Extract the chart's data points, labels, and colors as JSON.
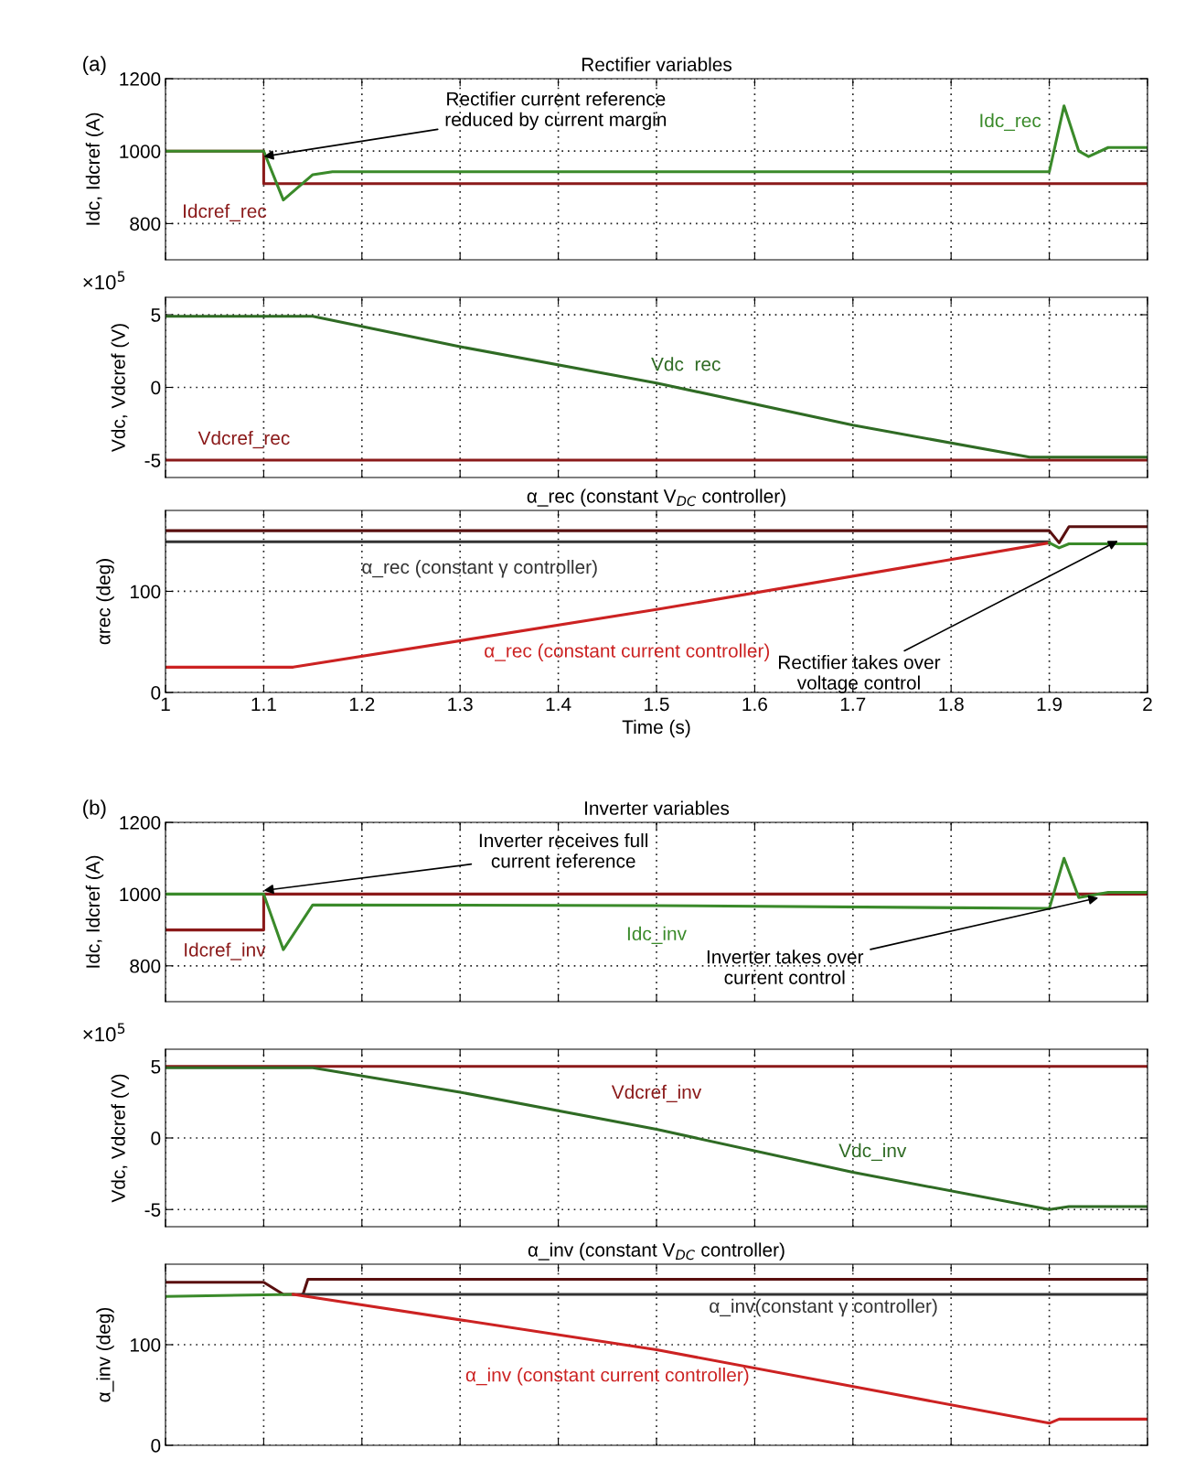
{
  "chart_data": [
    {
      "type": "line",
      "title": "Rectifier variables",
      "ylabel": "Idc, Idcref (A)",
      "xlim": [
        1,
        2
      ],
      "xticks": [
        1,
        1.1,
        1.2,
        1.3,
        1.4,
        1.5,
        1.6,
        1.7,
        1.8,
        1.9,
        2
      ],
      "ylim": [
        700,
        1200
      ],
      "yticks": [
        800,
        1000,
        1200
      ],
      "grid": true,
      "tick_labels": "y",
      "series": [
        {
          "name": "Idcref_rec",
          "color": "#8b1a1a",
          "x": [
            1,
            1.1,
            1.1,
            2
          ],
          "values": [
            1000,
            1000,
            910,
            910
          ]
        },
        {
          "name": "Idc_rec",
          "color": "#3a8a2a",
          "x": [
            1,
            1.1,
            1.12,
            1.15,
            1.17,
            1.9,
            1.915,
            1.93,
            1.94,
            1.96,
            2
          ],
          "values": [
            1000,
            1000,
            865,
            935,
            943,
            943,
            1125,
            1000,
            985,
            1010,
            1010
          ]
        }
      ],
      "annotations": [
        "(a)",
        {
          "text": "Rectifier current reference\nreduced by current margin",
          "x": 1.1,
          "y": 985
        }
      ]
    },
    {
      "type": "line",
      "ylabel": "Vdc, Vdcref (V)",
      "xlim": [
        1,
        2
      ],
      "xticks": [
        1,
        1.1,
        1.2,
        1.3,
        1.4,
        1.5,
        1.6,
        1.7,
        1.8,
        1.9,
        2
      ],
      "ylim": [
        -6.2,
        6.2
      ],
      "yticks": [
        -5,
        0,
        5
      ],
      "grid": true,
      "tick_labels": "y",
      "series": [
        {
          "name": "Vdcref_rec",
          "color": "#8b1a1a",
          "x": [
            1,
            2
          ],
          "values": [
            -5,
            -5
          ]
        },
        {
          "name": "Vdc  rec",
          "color": "#2f6b24",
          "x": [
            1,
            1.15,
            1.3,
            1.5,
            1.7,
            1.88,
            2
          ],
          "values": [
            4.9,
            4.9,
            2.8,
            0.3,
            -2.6,
            -4.8,
            -4.8
          ]
        }
      ],
      "annotations": [
        "×10$^{5}$"
      ]
    },
    {
      "type": "line",
      "title": "α_rec (constant V$_{DC}$ controller)",
      "xlabel": "Time (s)",
      "ylabel": "αrec (deg)",
      "xlim": [
        1,
        2
      ],
      "xticks": [
        1,
        1.1,
        1.2,
        1.3,
        1.4,
        1.5,
        1.6,
        1.7,
        1.8,
        1.9,
        2
      ],
      "ylim": [
        0,
        180
      ],
      "yticks": [
        0,
        100
      ],
      "grid": true,
      "series": [
        {
          "color": "#5a1010",
          "x": [
            1,
            1.9,
            1.91,
            1.92,
            2
          ],
          "values": [
            160,
            160,
            148,
            164,
            164
          ]
        },
        {
          "name": "α_rec (constant γ controller)",
          "color": "#333333",
          "x": [
            1,
            1.9
          ],
          "values": [
            149,
            149
          ]
        },
        {
          "name": "α_rec (constant current controller)",
          "color": "#cc2222",
          "x": [
            1,
            1.13,
            1.5,
            1.9
          ],
          "values": [
            25,
            25,
            82,
            148
          ]
        },
        {
          "color": "#3a8a2a",
          "x": [
            1.9,
            1.91,
            1.92,
            2
          ],
          "values": [
            148,
            143,
            147,
            147
          ]
        }
      ],
      "annotations": [
        {
          "text": "Rectifier takes over\nvoltage control",
          "x": 1.97,
          "y": 150
        }
      ]
    },
    {
      "type": "line",
      "title": "Inverter variables",
      "ylabel": "Idc, Idcref (A)",
      "xlim": [
        1,
        2
      ],
      "xticks": [
        1,
        1.1,
        1.2,
        1.3,
        1.4,
        1.5,
        1.6,
        1.7,
        1.8,
        1.9,
        2
      ],
      "ylim": [
        700,
        1200
      ],
      "yticks": [
        800,
        1000,
        1200
      ],
      "grid": true,
      "tick_labels": "y",
      "series": [
        {
          "name": "Idcref_inv",
          "color": "#8b1a1a",
          "x": [
            1,
            1.1,
            1.1,
            2
          ],
          "values": [
            900,
            900,
            1000,
            1000
          ]
        },
        {
          "name": "Idc_inv",
          "color": "#3a8a2a",
          "x": [
            1,
            1.1,
            1.12,
            1.15,
            1.5,
            1.9,
            1.915,
            1.93,
            1.96,
            2
          ],
          "values": [
            1000,
            1000,
            845,
            970,
            968,
            960,
            1100,
            990,
            1005,
            1005
          ]
        }
      ],
      "annotations": [
        "(b)",
        {
          "text": "Inverter receives full\ncurrent reference",
          "x": 1.1,
          "y": 1010
        },
        {
          "text": "Inverter takes over\ncurrent control",
          "x": 1.95,
          "y": 990
        }
      ]
    },
    {
      "type": "line",
      "ylabel": "Vdc, Vdcref (V)",
      "xlim": [
        1,
        2
      ],
      "xticks": [
        1,
        1.1,
        1.2,
        1.3,
        1.4,
        1.5,
        1.6,
        1.7,
        1.8,
        1.9,
        2
      ],
      "ylim": [
        -6.2,
        6.2
      ],
      "yticks": [
        -5,
        0,
        5
      ],
      "grid": true,
      "tick_labels": "y",
      "series": [
        {
          "name": "Vdcref_inv",
          "color": "#8b1a1a",
          "x": [
            1,
            2
          ],
          "values": [
            5,
            5
          ]
        },
        {
          "name": "Vdc_inv",
          "color": "#2f6b24",
          "x": [
            1,
            1.15,
            1.3,
            1.5,
            1.7,
            1.9,
            1.92,
            2
          ],
          "values": [
            4.9,
            4.9,
            3.2,
            0.6,
            -2.4,
            -5,
            -4.8,
            -4.8
          ]
        }
      ],
      "annotations": [
        "×10$^{5}$"
      ]
    },
    {
      "type": "line",
      "title": "α_inv (constant V$_{DC}$ controller)",
      "ylabel": "α_inv (deg)",
      "xlim": [
        1,
        2
      ],
      "xticks": [
        1,
        1.1,
        1.2,
        1.3,
        1.4,
        1.5,
        1.6,
        1.7,
        1.8,
        1.9,
        2
      ],
      "ylim": [
        0,
        180
      ],
      "yticks": [
        0,
        100
      ],
      "grid": true,
      "tick_labels": "y",
      "series": [
        {
          "color": "#5a1010",
          "x": [
            1,
            1.1,
            1.12,
            1.14,
            1.145,
            2
          ],
          "values": [
            162,
            162,
            150,
            150,
            165,
            165
          ]
        },
        {
          "name": "α_inv(constant γ controller)",
          "color": "#333333",
          "x": [
            1.14,
            2
          ],
          "values": [
            150,
            150
          ]
        },
        {
          "color": "#3a8a2a",
          "x": [
            1,
            1.13
          ],
          "values": [
            148,
            150
          ]
        },
        {
          "name": "α_inv (constant current controller)",
          "color": "#cc2222",
          "x": [
            1.13,
            1.5,
            1.9,
            1.91,
            2
          ],
          "values": [
            150,
            95,
            22,
            26,
            26
          ]
        }
      ]
    }
  ]
}
